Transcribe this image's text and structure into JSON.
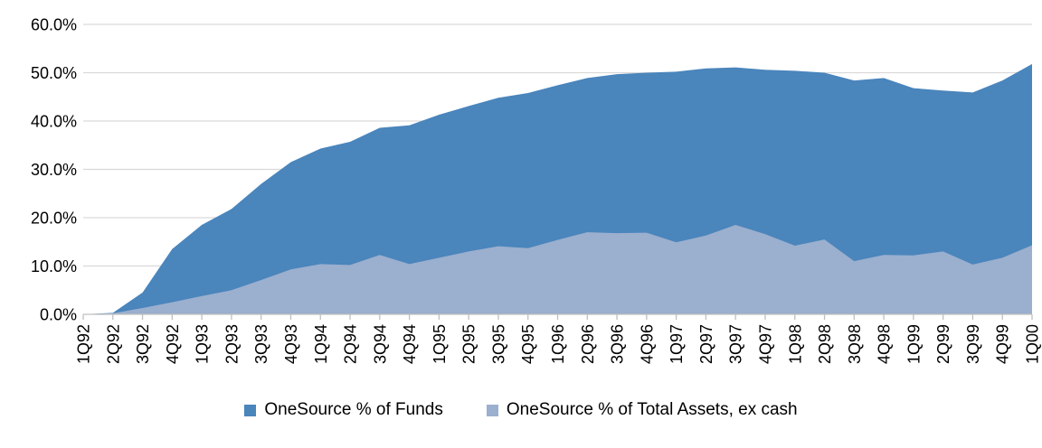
{
  "chart_data": {
    "type": "area",
    "overlap_mode": "overlapping",
    "title": "",
    "xlabel": "",
    "ylabel": "",
    "ylim": [
      0,
      60
    ],
    "grid": true,
    "legend_position": "bottom",
    "y_tick_labels": [
      "0.0%",
      "10.0%",
      "20.0%",
      "30.0%",
      "40.0%",
      "50.0%",
      "60.0%"
    ],
    "categories": [
      "1Q92",
      "2Q92",
      "3Q92",
      "4Q92",
      "1Q93",
      "2Q93",
      "3Q93",
      "4Q93",
      "1Q94",
      "2Q94",
      "3Q94",
      "4Q94",
      "1Q95",
      "2Q95",
      "3Q95",
      "4Q95",
      "1Q96",
      "2Q96",
      "3Q96",
      "4Q96",
      "1Q97",
      "2Q97",
      "3Q97",
      "4Q97",
      "1Q98",
      "2Q98",
      "3Q98",
      "4Q98",
      "1Q99",
      "2Q99",
      "3Q99",
      "4Q99",
      "1Q00"
    ],
    "series": [
      {
        "name": "OneSource % of Funds",
        "color": "#4A85BC",
        "values": [
          0,
          0.3,
          4.5,
          13.5,
          18.5,
          21.8,
          27.0,
          31.5,
          34.3,
          35.7,
          38.6,
          39.1,
          41.3,
          43.1,
          44.8,
          45.8,
          47.4,
          48.9,
          49.7,
          50.0,
          50.2,
          50.9,
          51.1,
          50.6,
          50.4,
          50.0,
          48.4,
          48.9,
          46.8,
          46.3,
          45.9,
          48.4,
          51.8
        ]
      },
      {
        "name": "OneSource % of Total Assets, ex cash",
        "color": "#9BAFCE",
        "values": [
          0,
          0.2,
          1.3,
          2.5,
          3.8,
          5.0,
          7.1,
          9.3,
          10.4,
          10.2,
          12.3,
          10.4,
          11.7,
          13.0,
          14.1,
          13.7,
          15.4,
          17.0,
          16.8,
          16.9,
          14.9,
          16.3,
          18.5,
          16.6,
          14.2,
          15.5,
          11.0,
          12.3,
          12.2,
          13.0,
          10.3,
          11.7,
          14.3
        ]
      }
    ],
    "colors": {
      "gridline": "#D9D9D9",
      "axis_line": "#BFBFBF",
      "tick_text": "#000000"
    }
  }
}
